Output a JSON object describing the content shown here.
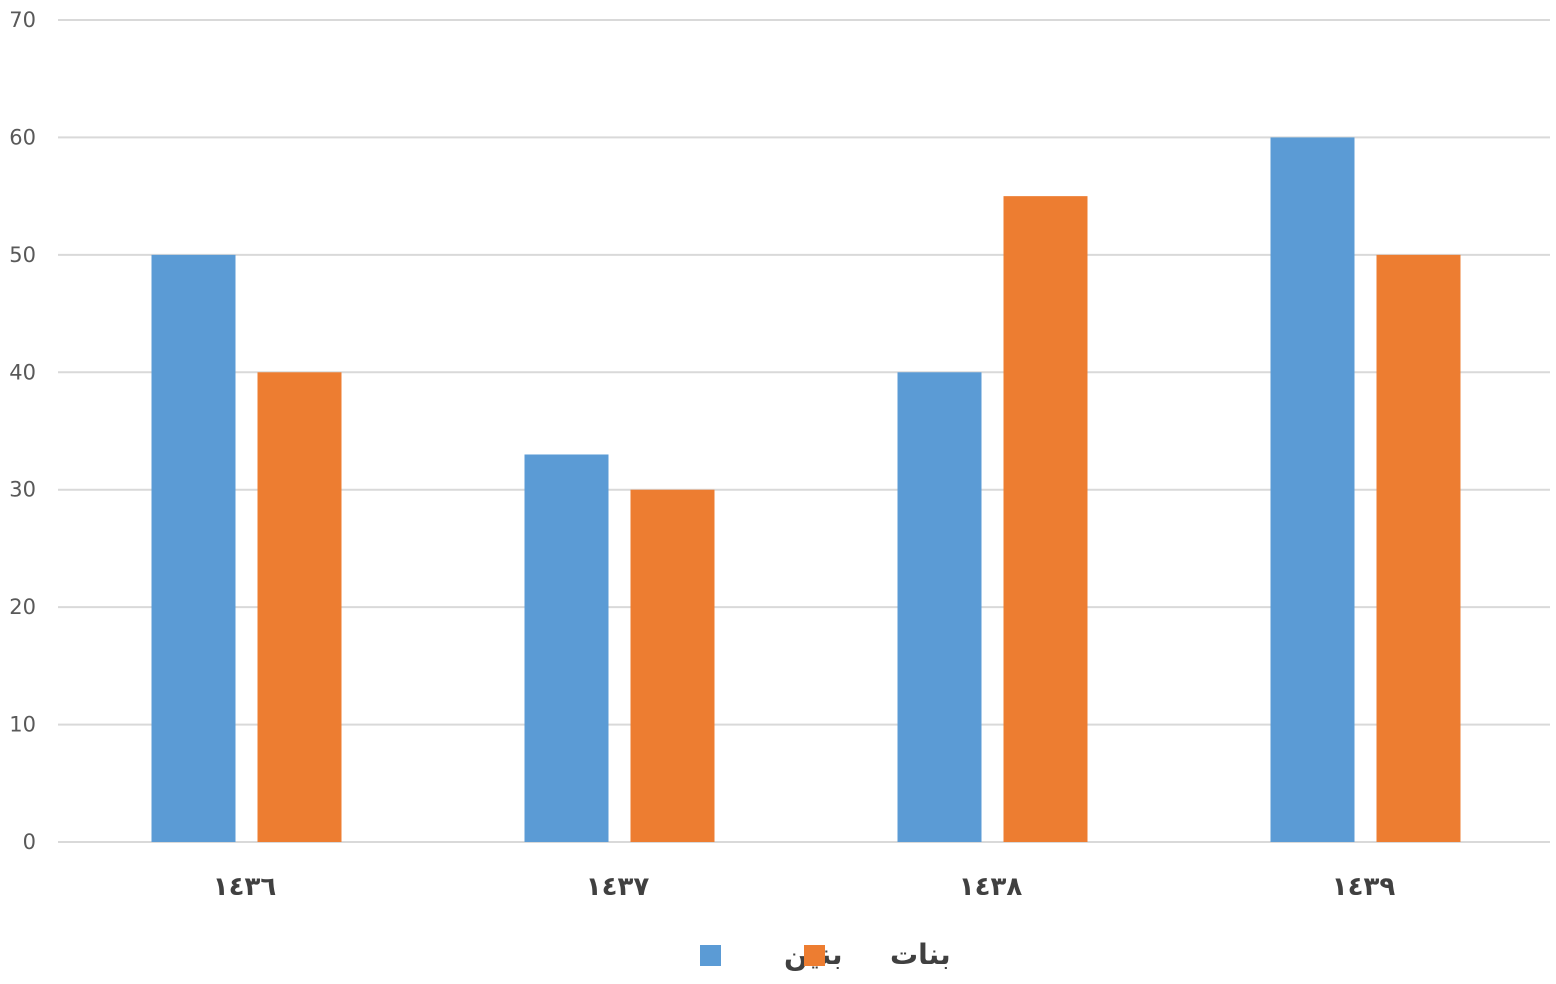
{
  "chart_data": {
    "type": "bar",
    "categories": [
      "١٤٣٦",
      "١٤٣٧",
      "١٤٣٨",
      "١٤٣٩"
    ],
    "series": [
      {
        "name": "بنين",
        "values": [
          50,
          33,
          40,
          60
        ],
        "color": "#5B9BD5"
      },
      {
        "name": "بنات",
        "values": [
          40,
          30,
          55,
          50
        ],
        "color": "#ED7D31"
      }
    ],
    "ylim": [
      0,
      70
    ],
    "yticks": [
      0,
      10,
      20,
      30,
      40,
      50,
      60,
      70
    ],
    "grid": true,
    "legend_position": "bottom",
    "title": "",
    "xlabel": "",
    "ylabel": ""
  }
}
